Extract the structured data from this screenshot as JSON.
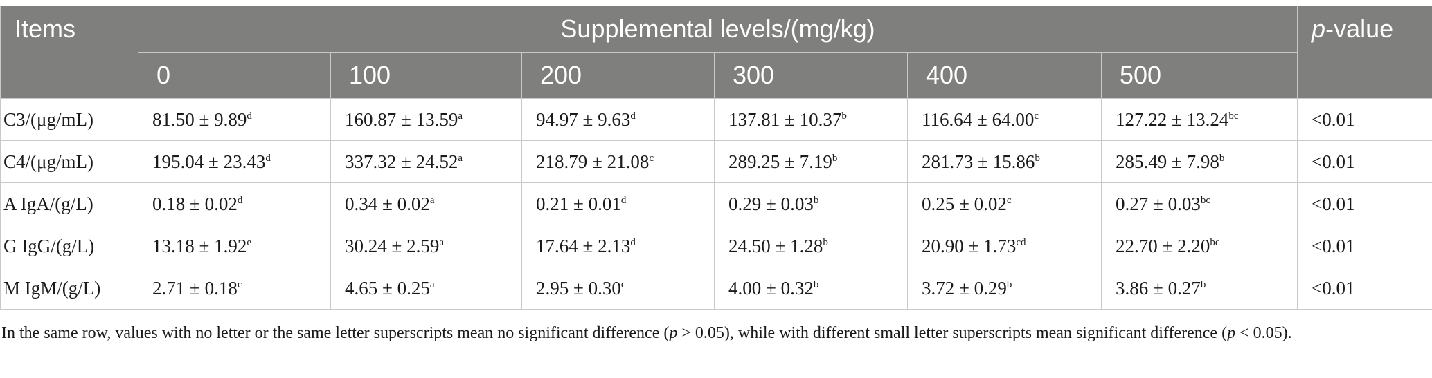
{
  "header": {
    "items": "Items",
    "group": "Supplemental levels/(mg/kg)",
    "p_italic": "p",
    "p_rest": "-value",
    "levels": [
      "0",
      "100",
      "200",
      "300",
      "400",
      "500"
    ]
  },
  "rows": [
    {
      "label": "C3/(μg/mL)",
      "cells": [
        {
          "v": "81.50 ± 9.89",
          "s": "d"
        },
        {
          "v": "160.87 ± 13.59",
          "s": "a"
        },
        {
          "v": "94.97 ± 9.63",
          "s": "d"
        },
        {
          "v": "137.81 ± 10.37",
          "s": "b"
        },
        {
          "v": "116.64 ± 64.00",
          "s": "c"
        },
        {
          "v": "127.22 ± 13.24",
          "s": "bc"
        }
      ],
      "p": "<0.01"
    },
    {
      "label": "C4/(μg/mL)",
      "cells": [
        {
          "v": "195.04 ± 23.43",
          "s": "d"
        },
        {
          "v": "337.32 ± 24.52",
          "s": "a"
        },
        {
          "v": "218.79 ± 21.08",
          "s": "c"
        },
        {
          "v": "289.25 ± 7.19",
          "s": "b"
        },
        {
          "v": "281.73 ± 15.86",
          "s": "b"
        },
        {
          "v": "285.49 ± 7.98",
          "s": "b"
        }
      ],
      "p": "<0.01"
    },
    {
      "label": "A IgA/(g/L)",
      "cells": [
        {
          "v": "0.18 ± 0.02",
          "s": "d"
        },
        {
          "v": "0.34 ± 0.02",
          "s": "a"
        },
        {
          "v": "0.21 ± 0.01",
          "s": "d"
        },
        {
          "v": "0.29 ± 0.03",
          "s": "b"
        },
        {
          "v": "0.25 ± 0.02",
          "s": "c"
        },
        {
          "v": "0.27 ± 0.03",
          "s": "bc"
        }
      ],
      "p": "<0.01"
    },
    {
      "label": "G IgG/(g/L)",
      "cells": [
        {
          "v": "13.18 ± 1.92",
          "s": "e"
        },
        {
          "v": "30.24 ± 2.59",
          "s": "a"
        },
        {
          "v": "17.64 ± 2.13",
          "s": "d"
        },
        {
          "v": "24.50 ± 1.28",
          "s": "b"
        },
        {
          "v": "20.90 ± 1.73",
          "s": "cd"
        },
        {
          "v": "22.70 ± 2.20",
          "s": "bc"
        }
      ],
      "p": "<0.01"
    },
    {
      "label": "M IgM/(g/L)",
      "cells": [
        {
          "v": "2.71 ± 0.18",
          "s": "c"
        },
        {
          "v": "4.65 ± 0.25",
          "s": "a"
        },
        {
          "v": "2.95 ± 0.30",
          "s": "c"
        },
        {
          "v": "4.00 ± 0.32",
          "s": "b"
        },
        {
          "v": "3.72 ± 0.29",
          "s": "b"
        },
        {
          "v": "3.86 ± 0.27",
          "s": "b"
        }
      ],
      "p": "<0.01"
    }
  ],
  "footnote": {
    "t1": "In the same row, values with no letter or the same letter superscripts mean no significant difference (",
    "p1": "p",
    "t2": " > 0.05), while with different small letter superscripts mean significant difference (",
    "p2": "p",
    "t3": " < 0.05)."
  }
}
